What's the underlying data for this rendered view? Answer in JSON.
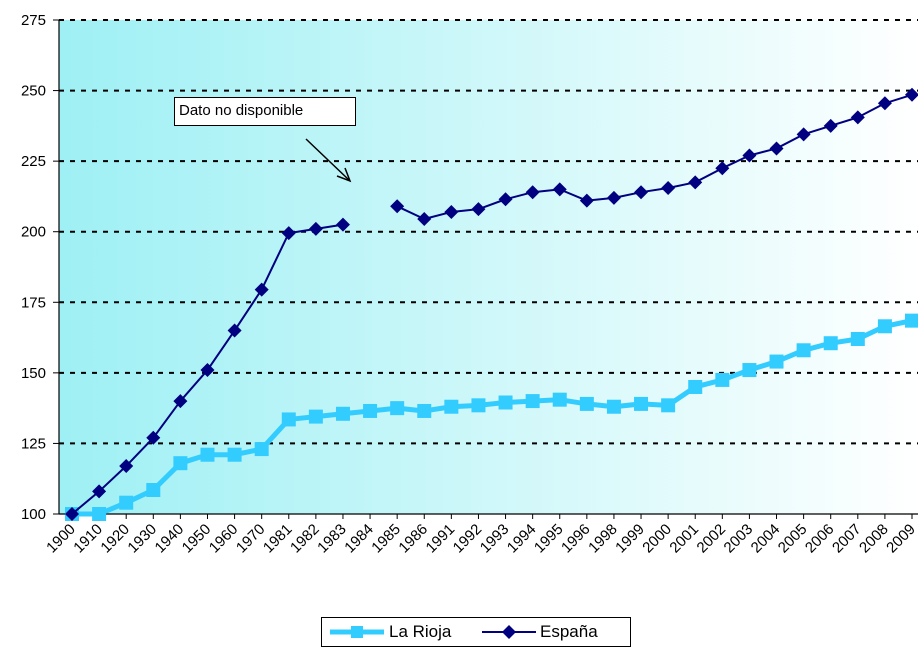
{
  "chart_data": {
    "type": "line",
    "categories": [
      "1900",
      "1910",
      "1920",
      "1930",
      "1940",
      "1950",
      "1960",
      "1970",
      "1981",
      "1982",
      "1983",
      "1984",
      "1985",
      "1986",
      "1991",
      "1992",
      "1993",
      "1994",
      "1995",
      "1996",
      "1998",
      "1999",
      "2000",
      "2001",
      "2002",
      "2003",
      "2004",
      "2005",
      "2006",
      "2007",
      "2008",
      "2009"
    ],
    "ylim": [
      100,
      275
    ],
    "yticks": [
      100,
      125,
      150,
      175,
      200,
      225,
      250,
      275
    ],
    "grid": true,
    "legend": "bottom",
    "annotation": "Dato no disponible",
    "series": [
      {
        "name": "La Rioja",
        "color": "#33ccff",
        "marker": "square",
        "values": [
          100,
          100,
          104,
          108.5,
          118,
          121,
          121,
          123,
          133.5,
          134.5,
          135.5,
          136.5,
          137.5,
          136.5,
          138,
          138.5,
          139.5,
          140,
          140.5,
          139,
          138,
          139,
          138.5,
          145,
          147.5,
          151,
          154,
          158,
          160.5,
          162,
          166.5,
          168.5
        ]
      },
      {
        "name": "España",
        "color": "#000080",
        "marker": "diamond",
        "values": [
          100,
          108,
          117,
          127,
          140,
          151,
          165,
          179.5,
          199.5,
          201,
          202.5,
          null,
          209,
          204.5,
          207,
          208,
          211.5,
          214,
          215,
          211,
          212,
          214,
          215.5,
          217.5,
          222.5,
          227,
          229.5,
          234.5,
          237.5,
          240.5,
          245.5,
          248.5
        ]
      }
    ]
  }
}
